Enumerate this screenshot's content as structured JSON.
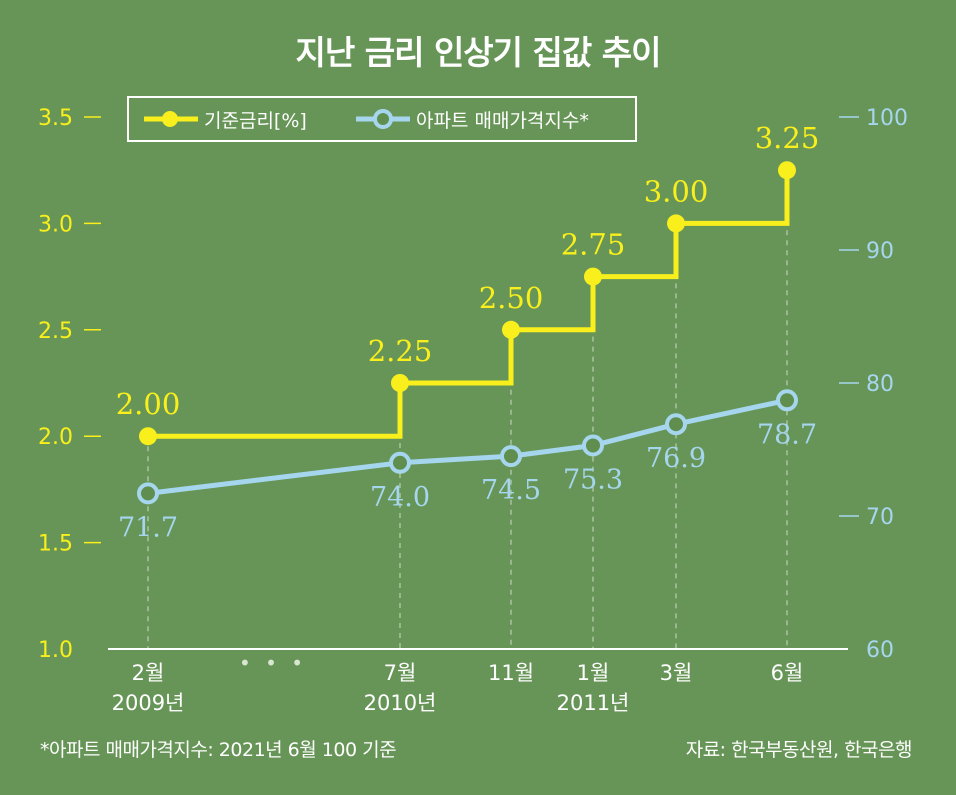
{
  "title": "지난 금리 인상기 집값 추이",
  "footnote": "*아파트 매매가격지수: 2021년 6월 100 기준",
  "source": "자료: 한국부동산원, 한국은행",
  "colors": {
    "background": "#679557",
    "rate": "#f8ef1c",
    "index": "#a6d6ee",
    "index_marker_fill": "#5f8e4f",
    "grid": "#c9d8bf",
    "text": "#ffffff"
  },
  "chart_data": {
    "type": "line",
    "title": "지난 금리 인상기 집값 추이",
    "x_tick_labels": [
      {
        "month": "2월",
        "year": "2009년"
      },
      {
        "month": "7월",
        "year": "2010년"
      },
      {
        "month": "11월",
        "year": ""
      },
      {
        "month": "1월",
        "year": "2011년"
      },
      {
        "month": "3월",
        "year": ""
      },
      {
        "month": "6월",
        "year": ""
      }
    ],
    "x_break_marker": "• • •",
    "series": [
      {
        "name": "기준금리[%]",
        "axis": "left",
        "style": "step",
        "values": [
          2.0,
          2.25,
          2.5,
          2.75,
          3.0,
          3.25
        ],
        "labels": [
          "2.00",
          "2.25",
          "2.50",
          "2.75",
          "3.00",
          "3.25"
        ]
      },
      {
        "name": "아파트 매매가격지수*",
        "axis": "right",
        "style": "line",
        "values": [
          71.7,
          74.0,
          74.5,
          75.3,
          76.9,
          78.7
        ],
        "labels": [
          "71.7",
          "74.0",
          "74.5",
          "75.3",
          "76.9",
          "78.7"
        ]
      }
    ],
    "y_left": {
      "min": 1.0,
      "max": 3.5,
      "ticks": [
        "1.0",
        "1.5",
        "2.0",
        "2.5",
        "3.0",
        "3.5"
      ]
    },
    "y_right": {
      "min": 60,
      "max": 100,
      "ticks": [
        "60",
        "70",
        "80",
        "90",
        "100"
      ]
    },
    "legend_position": "top-left"
  }
}
